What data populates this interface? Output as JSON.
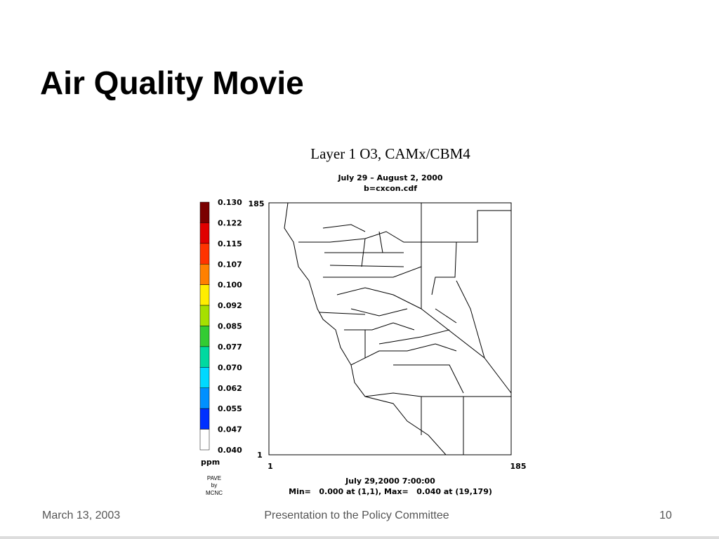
{
  "slide": {
    "title": "Air Quality Movie",
    "figure": {
      "title": "Layer 1  O3, CAMx/CBM4",
      "subtitle": [
        "July 29 – August 2, 2000",
        "b=cxcon.cdf"
      ],
      "colorbar": {
        "labels": [
          "0.130",
          "0.122",
          "0.115",
          "0.107",
          "0.100",
          "0.092",
          "0.085",
          "0.077",
          "0.070",
          "0.062",
          "0.055",
          "0.047",
          "0.040"
        ],
        "colors": [
          "#7a0000",
          "#e00000",
          "#ff3300",
          "#ff8000",
          "#ffee00",
          "#a6e000",
          "#33cc33",
          "#00d9a0",
          "#00d9ff",
          "#0090ff",
          "#0030ff",
          "#ffffff"
        ],
        "unit": "ppm"
      },
      "credit": [
        "PAVE",
        "by",
        "MCNC"
      ],
      "y_axis": {
        "top": "185",
        "bottom": "1"
      },
      "x_axis": {
        "left": "1",
        "right": "185"
      },
      "timestamp": "July 29,2000 7:00:00",
      "stats": "Min=   0.000 at (1,1), Max=   0.040 at (19,179)"
    },
    "footer": {
      "date": "March 13, 2003",
      "center": "Presentation to the Policy Committee",
      "page": "10"
    }
  }
}
